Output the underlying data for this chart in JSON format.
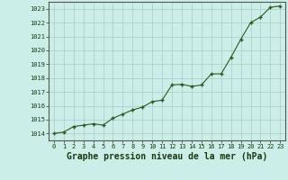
{
  "title": "Graphe pression niveau de la mer (hPa)",
  "x_values": [
    0,
    1,
    2,
    3,
    4,
    5,
    6,
    7,
    8,
    9,
    10,
    11,
    12,
    13,
    14,
    15,
    16,
    17,
    18,
    19,
    20,
    21,
    22,
    23
  ],
  "y_values": [
    1014.0,
    1014.1,
    1014.5,
    1014.6,
    1014.7,
    1014.6,
    1015.1,
    1015.4,
    1015.7,
    1015.9,
    1016.3,
    1016.4,
    1017.5,
    1017.55,
    1017.4,
    1017.5,
    1018.3,
    1018.3,
    1019.5,
    1020.8,
    1022.0,
    1022.4,
    1023.1,
    1023.2
  ],
  "xlim": [
    -0.5,
    23.5
  ],
  "ylim": [
    1013.5,
    1023.5
  ],
  "yticks": [
    1014,
    1015,
    1016,
    1017,
    1018,
    1019,
    1020,
    1021,
    1022,
    1023
  ],
  "xticks": [
    0,
    1,
    2,
    3,
    4,
    5,
    6,
    7,
    8,
    9,
    10,
    11,
    12,
    13,
    14,
    15,
    16,
    17,
    18,
    19,
    20,
    21,
    22,
    23
  ],
  "line_color": "#2d5a1b",
  "marker_color": "#2d5a1b",
  "bg_color": "#cceee8",
  "grid_color": "#aaccc8",
  "border_color": "#555555",
  "title_color": "#1a3a0a",
  "tick_color": "#1a3a0a",
  "title_fontsize": 7.0,
  "tick_fontsize": 5.0
}
